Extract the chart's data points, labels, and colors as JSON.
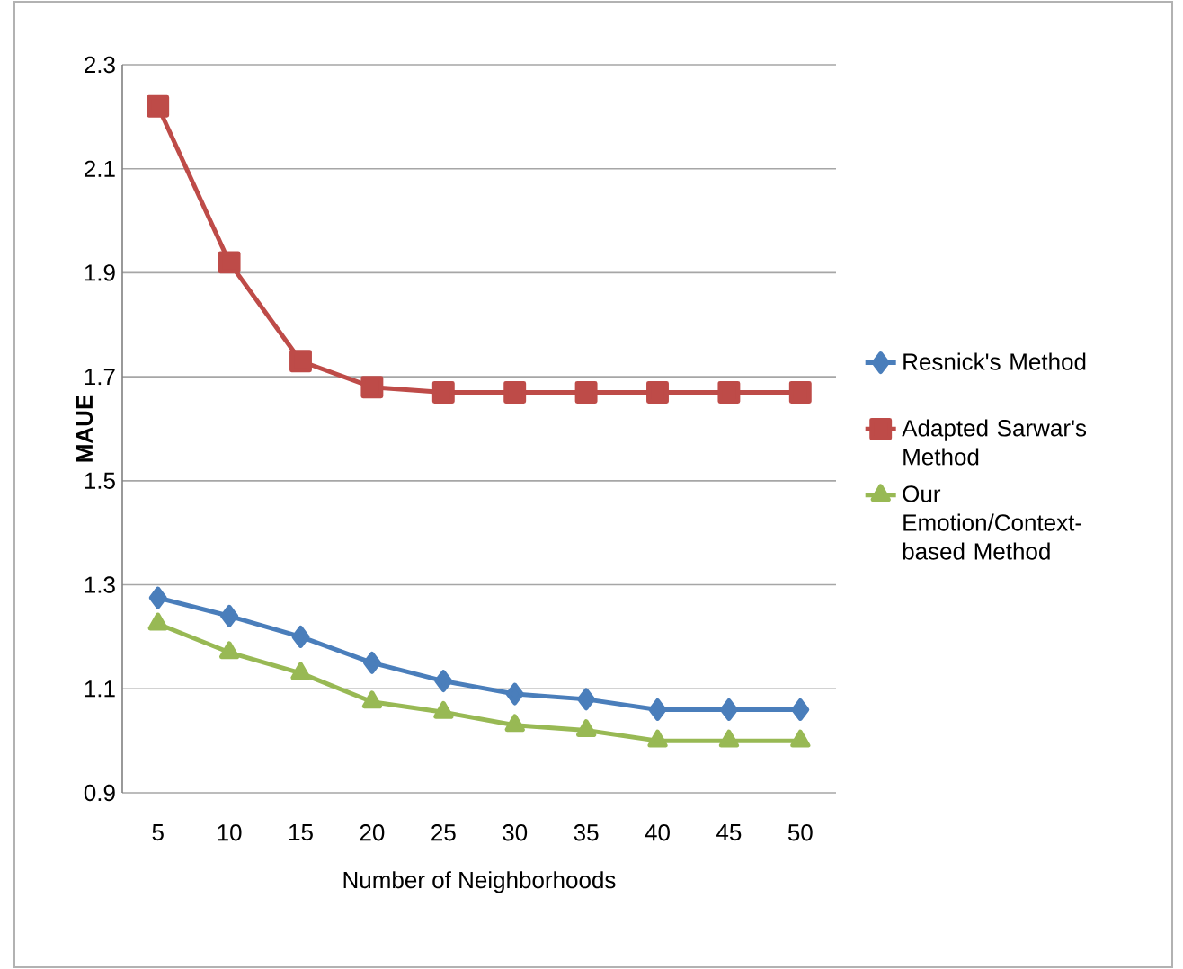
{
  "chart_data": {
    "type": "line",
    "xlabel": "Number of Neighborhoods",
    "ylabel": "MAUE",
    "categories": [
      "5",
      "10",
      "15",
      "20",
      "25",
      "30",
      "35",
      "40",
      "45",
      "50"
    ],
    "series": [
      {
        "name": "Resnick's Method",
        "color": "#4a7ebb",
        "marker": "diamond",
        "values": [
          1.275,
          1.24,
          1.2,
          1.15,
          1.115,
          1.09,
          1.08,
          1.06,
          1.06,
          1.06
        ]
      },
      {
        "name": "Adapted Sarwar's Method",
        "color": "#be4b48",
        "marker": "square",
        "values": [
          2.22,
          1.92,
          1.73,
          1.68,
          1.67,
          1.67,
          1.67,
          1.67,
          1.67,
          1.67
        ]
      },
      {
        "name": "Our Emotion/Context-based Method",
        "color": "#98b954",
        "marker": "triangle",
        "values": [
          1.225,
          1.17,
          1.13,
          1.075,
          1.055,
          1.03,
          1.02,
          1.0,
          1.0,
          1.0
        ]
      }
    ],
    "ylim": [
      0.9,
      2.3
    ],
    "yticks": [
      0.9,
      1.1,
      1.3,
      1.5,
      1.7,
      1.9,
      2.1,
      2.3
    ],
    "grid": "y",
    "legend": "right"
  }
}
